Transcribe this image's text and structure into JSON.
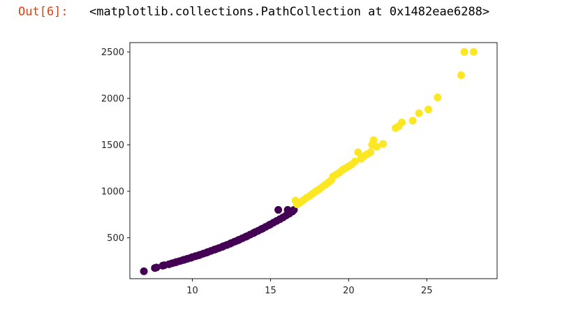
{
  "cell": {
    "prompt": "Out[6]:",
    "output_text": "<matplotlib.collections.PathCollection at 0x1482eae6288>"
  },
  "chart_data": {
    "type": "scatter",
    "xlim": [
      6,
      29.5
    ],
    "ylim": [
      60,
      2600
    ],
    "xticks": [
      10,
      15,
      20,
      25
    ],
    "yticks": [
      500,
      1000,
      1500,
      2000,
      2500
    ],
    "grid": false,
    "colors": {
      "cluster_0": "#440154",
      "cluster_1": "#fde725"
    },
    "points": [
      [
        6.9,
        140,
        0
      ],
      [
        7.6,
        175,
        0
      ],
      [
        7.7,
        180,
        0
      ],
      [
        8.1,
        200,
        0
      ],
      [
        8.2,
        205,
        0
      ],
      [
        8.5,
        215,
        0
      ],
      [
        8.7,
        225,
        0
      ],
      [
        8.9,
        235,
        0
      ],
      [
        9.0,
        240,
        0
      ],
      [
        9.2,
        250,
        0
      ],
      [
        9.4,
        260,
        0
      ],
      [
        9.5,
        265,
        0
      ],
      [
        9.7,
        275,
        0
      ],
      [
        9.9,
        285,
        0
      ],
      [
        10.0,
        292,
        0
      ],
      [
        10.2,
        302,
        0
      ],
      [
        10.4,
        312,
        0
      ],
      [
        10.5,
        318,
        0
      ],
      [
        10.7,
        330,
        0
      ],
      [
        10.9,
        340,
        0
      ],
      [
        11.0,
        348,
        0
      ],
      [
        11.2,
        360,
        0
      ],
      [
        11.4,
        372,
        0
      ],
      [
        11.5,
        378,
        0
      ],
      [
        11.7,
        390,
        0
      ],
      [
        11.9,
        402,
        0
      ],
      [
        12.0,
        410,
        0
      ],
      [
        12.2,
        422,
        0
      ],
      [
        12.4,
        436,
        0
      ],
      [
        12.5,
        444,
        0
      ],
      [
        12.7,
        458,
        0
      ],
      [
        12.9,
        472,
        0
      ],
      [
        13.0,
        480,
        0
      ],
      [
        13.2,
        495,
        0
      ],
      [
        13.4,
        510,
        0
      ],
      [
        13.5,
        518,
        0
      ],
      [
        13.7,
        534,
        0
      ],
      [
        13.9,
        550,
        0
      ],
      [
        14.0,
        560,
        0
      ],
      [
        14.2,
        575,
        0
      ],
      [
        14.4,
        592,
        0
      ],
      [
        14.5,
        600,
        0
      ],
      [
        14.7,
        618,
        0
      ],
      [
        14.9,
        636,
        0
      ],
      [
        15.0,
        645,
        0
      ],
      [
        15.2,
        664,
        0
      ],
      [
        15.4,
        682,
        0
      ],
      [
        15.5,
        800,
        0
      ],
      [
        15.6,
        700,
        0
      ],
      [
        15.8,
        720,
        0
      ],
      [
        16.0,
        740,
        0
      ],
      [
        16.1,
        800,
        0
      ],
      [
        16.2,
        760,
        0
      ],
      [
        16.4,
        782,
        0
      ],
      [
        16.5,
        800,
        0
      ],
      [
        16.6,
        900,
        1
      ],
      [
        16.7,
        860,
        1
      ],
      [
        16.9,
        880,
        1
      ],
      [
        17.1,
        905,
        1
      ],
      [
        17.3,
        930,
        1
      ],
      [
        17.5,
        950,
        1
      ],
      [
        17.7,
        975,
        1
      ],
      [
        17.9,
        1000,
        1
      ],
      [
        18.1,
        1020,
        1
      ],
      [
        18.3,
        1045,
        1
      ],
      [
        18.5,
        1070,
        1
      ],
      [
        18.7,
        1095,
        1
      ],
      [
        18.9,
        1120,
        1
      ],
      [
        19.0,
        1160,
        1
      ],
      [
        19.2,
        1180,
        1
      ],
      [
        19.4,
        1200,
        1
      ],
      [
        19.6,
        1230,
        1
      ],
      [
        19.8,
        1250,
        1
      ],
      [
        20.0,
        1270,
        1
      ],
      [
        20.2,
        1290,
        1
      ],
      [
        20.4,
        1320,
        1
      ],
      [
        20.6,
        1420,
        1
      ],
      [
        20.8,
        1350,
        1
      ],
      [
        21.0,
        1380,
        1
      ],
      [
        21.2,
        1400,
        1
      ],
      [
        21.4,
        1420,
        1
      ],
      [
        21.5,
        1500,
        1
      ],
      [
        21.6,
        1550,
        1
      ],
      [
        21.8,
        1480,
        1
      ],
      [
        22.2,
        1510,
        1
      ],
      [
        23.0,
        1680,
        1
      ],
      [
        23.2,
        1700,
        1
      ],
      [
        23.4,
        1740,
        1
      ],
      [
        24.1,
        1760,
        1
      ],
      [
        24.5,
        1840,
        1
      ],
      [
        25.1,
        1880,
        1
      ],
      [
        25.7,
        2010,
        1
      ],
      [
        27.2,
        2250,
        1
      ],
      [
        27.4,
        2500,
        1
      ],
      [
        28.0,
        2500,
        1
      ]
    ]
  }
}
